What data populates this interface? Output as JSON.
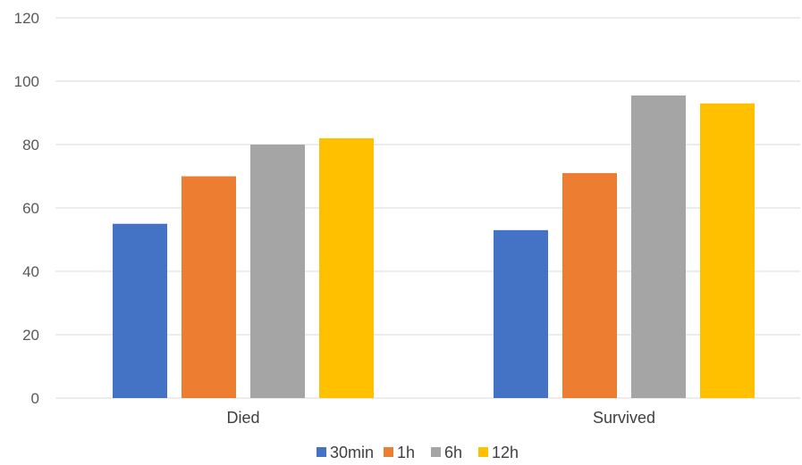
{
  "chart_data": {
    "type": "bar",
    "categories": [
      "Died",
      "Survived"
    ],
    "series": [
      {
        "name": "30min",
        "color": "#4472c4",
        "values": [
          55,
          53
        ]
      },
      {
        "name": "1h",
        "color": "#ed7d31",
        "values": [
          70,
          71
        ]
      },
      {
        "name": "6h",
        "color": "#a5a5a5",
        "values": [
          80,
          95.5
        ]
      },
      {
        "name": "12h",
        "color": "#ffc000",
        "values": [
          82,
          93
        ]
      }
    ],
    "y_ticks": [
      0,
      20,
      40,
      60,
      80,
      100,
      120
    ],
    "ylim": [
      0,
      120
    ],
    "grid": true,
    "legend_position": "bottom"
  }
}
